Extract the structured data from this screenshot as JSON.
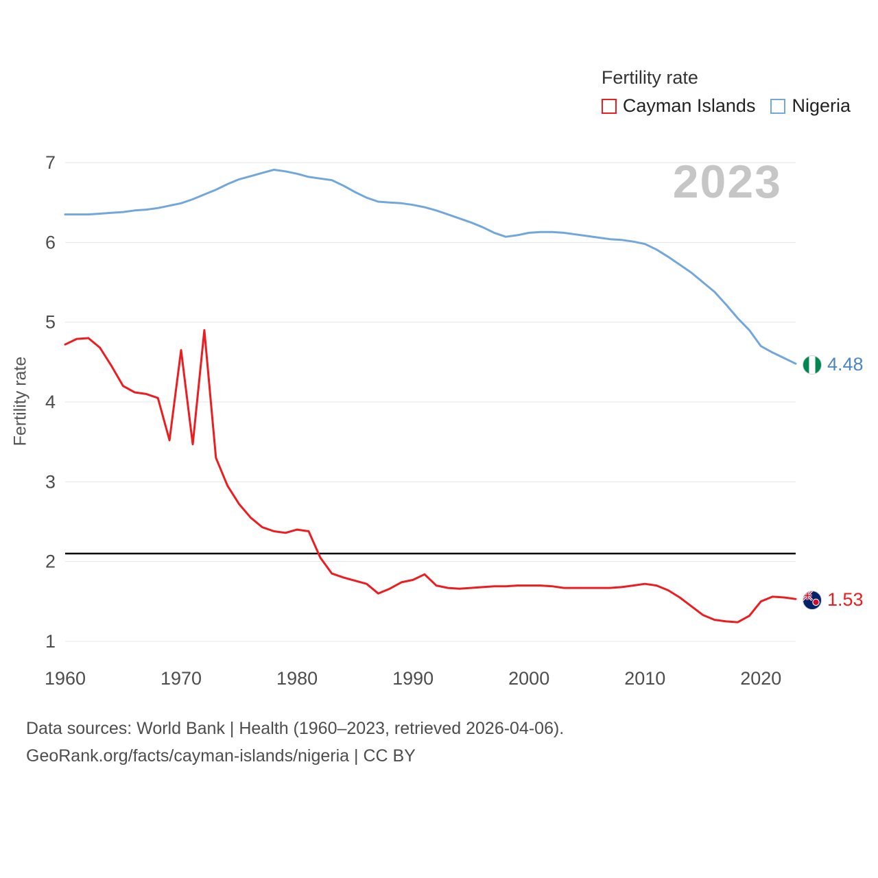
{
  "legend": {
    "title": "Fertility rate",
    "items": [
      {
        "label": "Cayman Islands",
        "color": "#ee1c1e"
      },
      {
        "label": "Nigeria",
        "color": "#72a7dc"
      }
    ]
  },
  "watermark": "2023",
  "ylabel": "Fertility rate",
  "end_labels": [
    {
      "series": "Nigeria",
      "value": "4.48",
      "color": "#4a86c8",
      "flag": "nigeria-flag"
    },
    {
      "series": "Cayman Islands",
      "value": "1.53",
      "color": "#ee1c1e",
      "flag": "cayman-islands-flag"
    }
  ],
  "footer": {
    "line1": "Data sources: World Bank | Health (1960–2023, retrieved 2026-04-06).",
    "line2": "GeoRank.org/facts/cayman-islands/nigeria | CC BY"
  },
  "chart_data": {
    "type": "line",
    "title": "Fertility rate",
    "ylabel": "Fertility rate",
    "xlabel": "",
    "xlim": [
      1960,
      2023
    ],
    "ylim": [
      1,
      7
    ],
    "xticks": [
      1960,
      1970,
      1980,
      1990,
      2000,
      2010,
      2020
    ],
    "yticks": [
      1,
      2,
      3,
      4,
      5,
      6,
      7
    ],
    "grid": "horizontal",
    "legend_position": "top-right",
    "reference_line": {
      "y": 2.1,
      "color": "#000000",
      "meaning": "replacement level"
    },
    "x": [
      1960,
      1961,
      1962,
      1963,
      1964,
      1965,
      1966,
      1967,
      1968,
      1969,
      1970,
      1971,
      1972,
      1973,
      1974,
      1975,
      1976,
      1977,
      1978,
      1979,
      1980,
      1981,
      1982,
      1983,
      1984,
      1985,
      1986,
      1987,
      1988,
      1989,
      1990,
      1991,
      1992,
      1993,
      1994,
      1995,
      1996,
      1997,
      1998,
      1999,
      2000,
      2001,
      2002,
      2003,
      2004,
      2005,
      2006,
      2007,
      2008,
      2009,
      2010,
      2011,
      2012,
      2013,
      2014,
      2015,
      2016,
      2017,
      2018,
      2019,
      2020,
      2021,
      2022,
      2023
    ],
    "series": [
      {
        "name": "Cayman Islands",
        "color": "#ee1c1e",
        "final_value": 1.53,
        "values": [
          4.72,
          4.79,
          4.8,
          4.68,
          4.45,
          4.2,
          4.12,
          4.1,
          4.05,
          3.52,
          4.65,
          3.47,
          4.9,
          3.3,
          2.95,
          2.72,
          2.55,
          2.43,
          2.38,
          2.36,
          2.4,
          2.38,
          2.05,
          1.85,
          1.8,
          1.76,
          1.72,
          1.6,
          1.66,
          1.74,
          1.77,
          1.84,
          1.7,
          1.67,
          1.66,
          1.67,
          1.68,
          1.69,
          1.69,
          1.7,
          1.7,
          1.7,
          1.69,
          1.67,
          1.67,
          1.67,
          1.67,
          1.67,
          1.68,
          1.7,
          1.72,
          1.7,
          1.64,
          1.55,
          1.44,
          1.33,
          1.27,
          1.25,
          1.24,
          1.32,
          1.5,
          1.56,
          1.55,
          1.53
        ]
      },
      {
        "name": "Nigeria",
        "color": "#72a7dc",
        "final_value": 4.48,
        "values": [
          6.35,
          6.35,
          6.35,
          6.36,
          6.37,
          6.38,
          6.4,
          6.41,
          6.43,
          6.46,
          6.49,
          6.54,
          6.6,
          6.66,
          6.73,
          6.79,
          6.83,
          6.87,
          6.91,
          6.89,
          6.86,
          6.82,
          6.8,
          6.78,
          6.71,
          6.63,
          6.56,
          6.51,
          6.5,
          6.49,
          6.47,
          6.44,
          6.4,
          6.35,
          6.3,
          6.25,
          6.19,
          6.12,
          6.07,
          6.09,
          6.12,
          6.13,
          6.13,
          6.12,
          6.1,
          6.08,
          6.06,
          6.04,
          6.03,
          6.01,
          5.98,
          5.91,
          5.82,
          5.72,
          5.62,
          5.5,
          5.38,
          5.22,
          5.05,
          4.9,
          4.7,
          4.62,
          4.55,
          4.48
        ]
      }
    ]
  }
}
